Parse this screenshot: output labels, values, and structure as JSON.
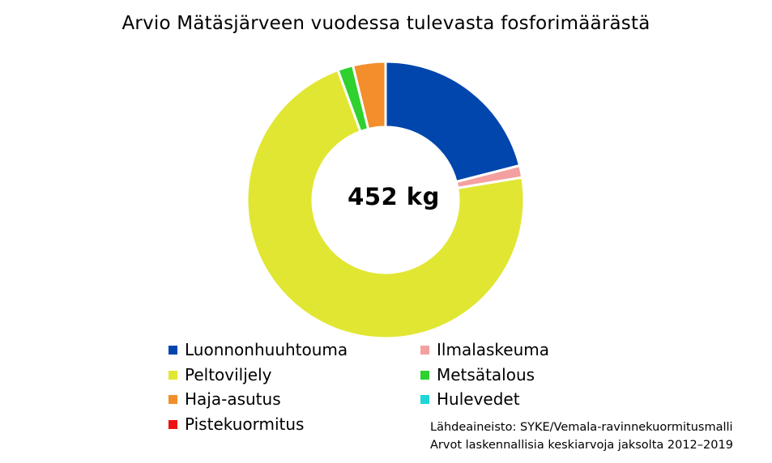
{
  "chart_data": {
    "type": "pie",
    "title": "Arvio Mätäsjärveen vuodessa tulevasta fosforimäärästä",
    "center_label": "452 kg",
    "categories": [
      "Luonnonhuuhtouma",
      "Ilmalaskeuma",
      "Peltoviljely",
      "Metsätalous",
      "Haja-asutus",
      "Hulevedet",
      "Pistekuormitus"
    ],
    "values": [
      21.0,
      1.4,
      72.0,
      1.8,
      3.8,
      0.0,
      0.0
    ],
    "colors": [
      "#0046AD",
      "#F4A0A0",
      "#E1E633",
      "#2FD12F",
      "#F28E2B",
      "#1FD6D6",
      "#EE1111"
    ],
    "legend_position": "bottom",
    "source_lines": [
      "Lähdeaineisto: SYKE/Vemala-ravinnekuormitusmalli",
      "Arvot laskennallisia keskiarvoja jaksolta 2012–2019"
    ]
  }
}
